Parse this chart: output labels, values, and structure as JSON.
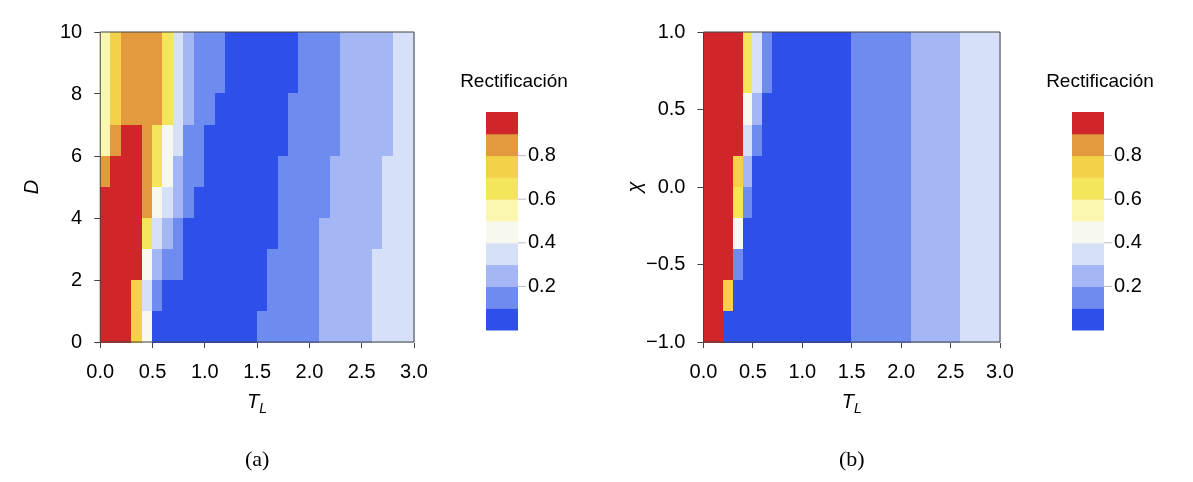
{
  "chart_data": [
    {
      "type": "heatmap",
      "xlabel": "T$_{L}$",
      "ylabel": "D",
      "clabel": "Rectificación",
      "annotations": [
        "(a)"
      ],
      "xlim": [
        0,
        3
      ],
      "xticks": [
        {
          "value": 0,
          "label": "0.0"
        },
        0.5,
        {
          "value": 1,
          "label": "1.0"
        },
        1.5,
        {
          "value": 2,
          "label": "2.0"
        },
        2.5,
        {
          "value": 3,
          "label": "3.0"
        }
      ],
      "ylim": [
        0,
        10
      ],
      "yticks": [
        0,
        2,
        4,
        6,
        8,
        10
      ],
      "clim": [
        0,
        1
      ],
      "cticks": [
        0.2,
        0.4,
        0.6,
        0.8
      ],
      "cells": [
        [
          0.55,
          0.75,
          0.85,
          0.85,
          0.85,
          0.85,
          0.65,
          0.35,
          0.25,
          0.15,
          0.15,
          0.15,
          0.05,
          0.05,
          0.05,
          0.05,
          0.05,
          0.05,
          0.05,
          0.15,
          0.15,
          0.15,
          0.15,
          0.25,
          0.25,
          0.25,
          0.25,
          0.25,
          0.35,
          0.35
        ],
        [
          0.55,
          0.75,
          0.85,
          0.85,
          0.85,
          0.85,
          0.65,
          0.35,
          0.25,
          0.15,
          0.15,
          0.15,
          0.05,
          0.05,
          0.05,
          0.05,
          0.05,
          0.05,
          0.05,
          0.15,
          0.15,
          0.15,
          0.15,
          0.25,
          0.25,
          0.25,
          0.25,
          0.25,
          0.35,
          0.35
        ],
        [
          0.55,
          0.75,
          0.85,
          0.85,
          0.85,
          0.85,
          0.65,
          0.35,
          0.25,
          0.15,
          0.15,
          0.05,
          0.05,
          0.05,
          0.05,
          0.05,
          0.05,
          0.05,
          0.15,
          0.15,
          0.15,
          0.15,
          0.15,
          0.25,
          0.25,
          0.25,
          0.25,
          0.25,
          0.35,
          0.35
        ],
        [
          0.55,
          0.85,
          0.95,
          0.95,
          0.85,
          0.65,
          0.45,
          0.35,
          0.15,
          0.15,
          0.05,
          0.05,
          0.05,
          0.05,
          0.05,
          0.05,
          0.05,
          0.05,
          0.15,
          0.15,
          0.15,
          0.15,
          0.15,
          0.25,
          0.25,
          0.25,
          0.25,
          0.25,
          0.35,
          0.35
        ],
        [
          0.85,
          0.95,
          0.95,
          0.95,
          0.85,
          0.65,
          0.45,
          0.25,
          0.15,
          0.15,
          0.05,
          0.05,
          0.05,
          0.05,
          0.05,
          0.05,
          0.05,
          0.15,
          0.15,
          0.15,
          0.15,
          0.15,
          0.25,
          0.25,
          0.25,
          0.25,
          0.25,
          0.35,
          0.35,
          0.35
        ],
        [
          0.95,
          0.95,
          0.95,
          0.95,
          0.85,
          0.45,
          0.35,
          0.25,
          0.15,
          0.05,
          0.05,
          0.05,
          0.05,
          0.05,
          0.05,
          0.05,
          0.05,
          0.15,
          0.15,
          0.15,
          0.15,
          0.15,
          0.25,
          0.25,
          0.25,
          0.25,
          0.25,
          0.35,
          0.35,
          0.35
        ],
        [
          0.95,
          0.95,
          0.95,
          0.95,
          0.65,
          0.35,
          0.25,
          0.15,
          0.05,
          0.05,
          0.05,
          0.05,
          0.05,
          0.05,
          0.05,
          0.05,
          0.05,
          0.15,
          0.15,
          0.15,
          0.15,
          0.25,
          0.25,
          0.25,
          0.25,
          0.25,
          0.25,
          0.35,
          0.35,
          0.35
        ],
        [
          0.95,
          0.95,
          0.95,
          0.95,
          0.45,
          0.25,
          0.15,
          0.15,
          0.05,
          0.05,
          0.05,
          0.05,
          0.05,
          0.05,
          0.05,
          0.05,
          0.15,
          0.15,
          0.15,
          0.15,
          0.15,
          0.25,
          0.25,
          0.25,
          0.25,
          0.25,
          0.35,
          0.35,
          0.35,
          0.35
        ],
        [
          0.95,
          0.95,
          0.95,
          0.75,
          0.35,
          0.15,
          0.05,
          0.05,
          0.05,
          0.05,
          0.05,
          0.05,
          0.05,
          0.05,
          0.05,
          0.05,
          0.15,
          0.15,
          0.15,
          0.15,
          0.15,
          0.25,
          0.25,
          0.25,
          0.25,
          0.25,
          0.35,
          0.35,
          0.35,
          0.35
        ],
        [
          0.95,
          0.95,
          0.95,
          0.75,
          0.45,
          0.05,
          0.05,
          0.05,
          0.05,
          0.05,
          0.05,
          0.05,
          0.05,
          0.05,
          0.05,
          0.15,
          0.15,
          0.15,
          0.15,
          0.15,
          0.15,
          0.25,
          0.25,
          0.25,
          0.25,
          0.25,
          0.35,
          0.35,
          0.35,
          0.35
        ]
      ]
    },
    {
      "type": "heatmap",
      "xlabel": "T$_{L}$",
      "ylabel": "χ",
      "clabel": "Rectificación",
      "annotations": [
        "(b)"
      ],
      "xlim": [
        0,
        3
      ],
      "xticks": [
        {
          "value": 0,
          "label": "0.0"
        },
        0.5,
        {
          "value": 1,
          "label": "1.0"
        },
        1.5,
        {
          "value": 2,
          "label": "2.0"
        },
        2.5,
        {
          "value": 3,
          "label": "3.0"
        }
      ],
      "ylim": [
        -1,
        1
      ],
      "yticks": [
        {
          "value": -1,
          "label": "−1.0"
        },
        {
          "value": -0.5,
          "label": "−0.5"
        },
        {
          "value": 0,
          "label": "0.0"
        },
        0.5,
        {
          "value": 1,
          "label": "1.0"
        }
      ],
      "clim": [
        0,
        1
      ],
      "cticks": [
        0.2,
        0.4,
        0.6,
        0.8
      ],
      "cells": [
        [
          0.95,
          0.95,
          0.95,
          0.95,
          0.65,
          0.35,
          0.15,
          0.05,
          0.05,
          0.05,
          0.05,
          0.05,
          0.05,
          0.05,
          0.05,
          0.15,
          0.15,
          0.15,
          0.15,
          0.15,
          0.15,
          0.25,
          0.25,
          0.25,
          0.25,
          0.25,
          0.35,
          0.35,
          0.35,
          0.35
        ],
        [
          0.95,
          0.95,
          0.95,
          0.95,
          0.65,
          0.35,
          0.15,
          0.05,
          0.05,
          0.05,
          0.05,
          0.05,
          0.05,
          0.05,
          0.05,
          0.15,
          0.15,
          0.15,
          0.15,
          0.15,
          0.15,
          0.25,
          0.25,
          0.25,
          0.25,
          0.25,
          0.35,
          0.35,
          0.35,
          0.35
        ],
        [
          0.95,
          0.95,
          0.95,
          0.95,
          0.45,
          0.25,
          0.05,
          0.05,
          0.05,
          0.05,
          0.05,
          0.05,
          0.05,
          0.05,
          0.05,
          0.15,
          0.15,
          0.15,
          0.15,
          0.15,
          0.15,
          0.25,
          0.25,
          0.25,
          0.25,
          0.25,
          0.35,
          0.35,
          0.35,
          0.35
        ],
        [
          0.95,
          0.95,
          0.95,
          0.95,
          0.35,
          0.15,
          0.05,
          0.05,
          0.05,
          0.05,
          0.05,
          0.05,
          0.05,
          0.05,
          0.05,
          0.15,
          0.15,
          0.15,
          0.15,
          0.15,
          0.15,
          0.25,
          0.25,
          0.25,
          0.25,
          0.25,
          0.35,
          0.35,
          0.35,
          0.35
        ],
        [
          0.95,
          0.95,
          0.95,
          0.75,
          0.25,
          0.05,
          0.05,
          0.05,
          0.05,
          0.05,
          0.05,
          0.05,
          0.05,
          0.05,
          0.05,
          0.15,
          0.15,
          0.15,
          0.15,
          0.15,
          0.15,
          0.25,
          0.25,
          0.25,
          0.25,
          0.25,
          0.35,
          0.35,
          0.35,
          0.35
        ],
        [
          0.95,
          0.95,
          0.95,
          0.65,
          0.15,
          0.05,
          0.05,
          0.05,
          0.05,
          0.05,
          0.05,
          0.05,
          0.05,
          0.05,
          0.05,
          0.15,
          0.15,
          0.15,
          0.15,
          0.15,
          0.15,
          0.25,
          0.25,
          0.25,
          0.25,
          0.25,
          0.35,
          0.35,
          0.35,
          0.35
        ],
        [
          0.95,
          0.95,
          0.95,
          0.45,
          0.05,
          0.05,
          0.05,
          0.05,
          0.05,
          0.05,
          0.05,
          0.05,
          0.05,
          0.05,
          0.05,
          0.15,
          0.15,
          0.15,
          0.15,
          0.15,
          0.15,
          0.25,
          0.25,
          0.25,
          0.25,
          0.25,
          0.35,
          0.35,
          0.35,
          0.35
        ],
        [
          0.95,
          0.95,
          0.95,
          0.15,
          0.05,
          0.05,
          0.05,
          0.05,
          0.05,
          0.05,
          0.05,
          0.05,
          0.05,
          0.05,
          0.05,
          0.15,
          0.15,
          0.15,
          0.15,
          0.15,
          0.15,
          0.25,
          0.25,
          0.25,
          0.25,
          0.25,
          0.35,
          0.35,
          0.35,
          0.35
        ],
        [
          0.95,
          0.95,
          0.75,
          0.05,
          0.05,
          0.05,
          0.05,
          0.05,
          0.05,
          0.05,
          0.05,
          0.05,
          0.05,
          0.05,
          0.05,
          0.15,
          0.15,
          0.15,
          0.15,
          0.15,
          0.15,
          0.25,
          0.25,
          0.25,
          0.25,
          0.25,
          0.35,
          0.35,
          0.35,
          0.35
        ],
        [
          0.95,
          0.95,
          0.05,
          0.05,
          0.05,
          0.05,
          0.05,
          0.05,
          0.05,
          0.05,
          0.05,
          0.05,
          0.05,
          0.05,
          0.05,
          0.15,
          0.15,
          0.15,
          0.15,
          0.15,
          0.15,
          0.25,
          0.25,
          0.25,
          0.25,
          0.25,
          0.35,
          0.35,
          0.35,
          0.35
        ]
      ]
    }
  ]
}
